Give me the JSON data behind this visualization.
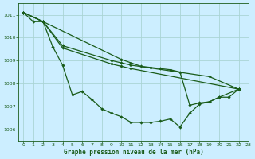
{
  "xlabel": "Graphe pression niveau de la mer (hPa)",
  "background_color": "#cceeff",
  "grid_color": "#aad4d4",
  "line_color": "#1a5c1a",
  "xlim": [
    -0.5,
    23
  ],
  "ylim": [
    1005.5,
    1011.5
  ],
  "yticks": [
    1006,
    1007,
    1008,
    1009,
    1010,
    1011
  ],
  "xticks": [
    0,
    1,
    2,
    3,
    4,
    5,
    6,
    7,
    8,
    9,
    10,
    11,
    12,
    13,
    14,
    15,
    16,
    17,
    18,
    19,
    20,
    21,
    22,
    23
  ],
  "line1_x": [
    0,
    1,
    2,
    3,
    4,
    5,
    6,
    7,
    8,
    9,
    10,
    11,
    12,
    13,
    14,
    15,
    16,
    17,
    18,
    19,
    20,
    21,
    22
  ],
  "line1_y": [
    1011.1,
    1010.7,
    1010.7,
    1009.6,
    1008.8,
    1007.5,
    1007.65,
    1007.3,
    1006.9,
    1006.7,
    1006.55,
    1006.3,
    1006.3,
    1006.3,
    1006.35,
    1006.45,
    1006.1,
    1006.7,
    1007.1,
    1007.2,
    1007.4,
    1007.4,
    1007.75
  ],
  "line2_x": [
    0,
    2,
    4,
    9,
    10,
    11,
    22
  ],
  "line2_y": [
    1011.1,
    1010.7,
    1009.55,
    1008.85,
    1008.75,
    1008.65,
    1007.75
  ],
  "line3_x": [
    0,
    2,
    4,
    9,
    10,
    11,
    19,
    22
  ],
  "line3_y": [
    1011.1,
    1010.7,
    1009.65,
    1009.0,
    1008.9,
    1008.8,
    1008.3,
    1007.75
  ],
  "line4_x": [
    0,
    2,
    10,
    11,
    12,
    13,
    14,
    15,
    16,
    17,
    18,
    19,
    20,
    22
  ],
  "line4_y": [
    1011.1,
    1010.7,
    1009.05,
    1008.9,
    1008.75,
    1008.7,
    1008.65,
    1008.6,
    1008.5,
    1007.05,
    1007.15,
    1007.2,
    1007.4,
    1007.75
  ]
}
